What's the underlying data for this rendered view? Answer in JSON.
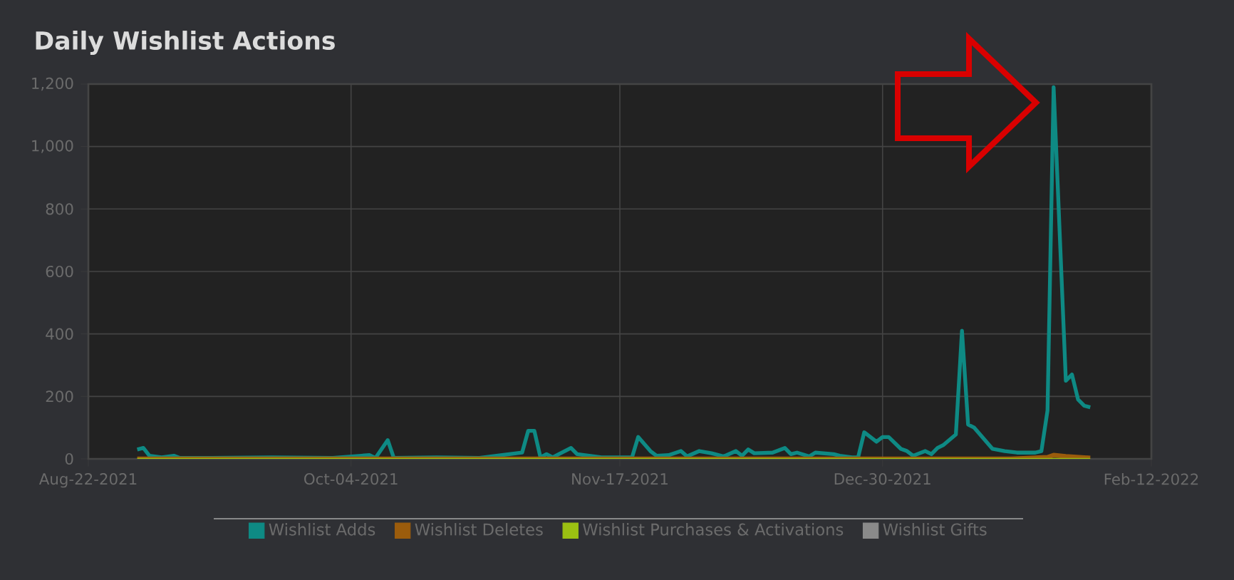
{
  "chart_data": {
    "type": "line",
    "title": "Daily Wishlist Actions",
    "xlim": [
      "2021-08-22",
      "2022-02-12"
    ],
    "xticks": [
      {
        "value": "2021-08-22",
        "label": "Aug-22-2021"
      },
      {
        "value": "2021-10-04",
        "label": "Oct-04-2021"
      },
      {
        "value": "2021-11-17",
        "label": "Nov-17-2021"
      },
      {
        "value": "2021-12-30",
        "label": "Dec-30-2021"
      },
      {
        "value": "2022-02-12",
        "label": "Feb-12-2022"
      }
    ],
    "ylim": [
      0,
      1200
    ],
    "yticks": [
      0,
      200,
      400,
      600,
      800,
      {
        "value": 1000,
        "label": "1,000"
      },
      {
        "value": 1200,
        "label": "1,200"
      }
    ],
    "grid": true,
    "legend": "bottom",
    "marker": "none",
    "line_style": "solid",
    "series": [
      {
        "name": "Wishlist Adds",
        "color": "#0e8a84",
        "x": [
          "2021-08-30",
          "2021-08-31",
          "2021-09-01",
          "2021-09-03",
          "2021-09-05",
          "2021-09-06",
          "2021-09-11",
          "2021-09-21",
          "2021-10-01",
          "2021-10-07",
          "2021-10-08",
          "2021-10-10",
          "2021-10-11",
          "2021-10-18",
          "2021-10-25",
          "2021-11-01",
          "2021-11-02",
          "2021-11-03",
          "2021-11-04",
          "2021-11-05",
          "2021-11-06",
          "2021-11-09",
          "2021-11-10",
          "2021-11-12",
          "2021-11-14",
          "2021-11-19",
          "2021-11-20",
          "2021-11-22",
          "2021-11-23",
          "2021-11-25",
          "2021-11-27",
          "2021-11-28",
          "2021-11-30",
          "2021-12-02",
          "2021-12-04",
          "2021-12-06",
          "2021-12-07",
          "2021-12-08",
          "2021-12-09",
          "2021-12-12",
          "2021-12-14",
          "2021-12-15",
          "2021-12-16",
          "2021-12-18",
          "2021-12-19",
          "2021-12-22",
          "2021-12-23",
          "2021-12-25",
          "2021-12-26",
          "2021-12-27",
          "2021-12-29",
          "2021-12-30",
          "2021-12-31",
          "2022-01-02",
          "2022-01-03",
          "2022-01-04",
          "2022-01-06",
          "2022-01-07",
          "2022-01-08",
          "2022-01-09",
          "2022-01-11",
          "2022-01-12",
          "2022-01-13",
          "2022-01-14",
          "2022-01-17",
          "2022-01-19",
          "2022-01-21",
          "2022-01-24",
          "2022-01-25",
          "2022-01-26",
          "2022-01-27",
          "2022-01-29",
          "2022-01-30",
          "2022-01-31",
          "2022-02-01",
          "2022-02-02"
        ],
        "values": [
          30,
          35,
          10,
          5,
          10,
          3,
          3,
          5,
          3,
          12,
          3,
          60,
          3,
          5,
          3,
          20,
          90,
          90,
          5,
          15,
          5,
          35,
          15,
          10,
          5,
          5,
          70,
          25,
          10,
          12,
          25,
          8,
          25,
          18,
          8,
          25,
          10,
          30,
          18,
          20,
          35,
          15,
          20,
          8,
          20,
          15,
          10,
          5,
          5,
          85,
          55,
          70,
          70,
          32,
          25,
          10,
          25,
          15,
          35,
          45,
          78,
          410,
          110,
          100,
          32,
          25,
          20,
          20,
          25,
          155,
          1190,
          250,
          270,
          190,
          170,
          165
        ]
      },
      {
        "name": "Wishlist Deletes",
        "color": "#9b5c0c",
        "x": [
          "2021-08-30",
          "2022-01-20",
          "2022-01-26",
          "2022-01-27",
          "2022-01-29",
          "2022-02-02"
        ],
        "values": [
          0,
          0,
          5,
          12,
          8,
          3
        ]
      },
      {
        "name": "Wishlist Purchases & Activations",
        "color": "#9bc012",
        "x": [
          "2021-08-30",
          "2022-02-02"
        ],
        "values": [
          0,
          0
        ]
      },
      {
        "name": "Wishlist Gifts",
        "color": "#8a8a8a"
      }
    ]
  }
}
